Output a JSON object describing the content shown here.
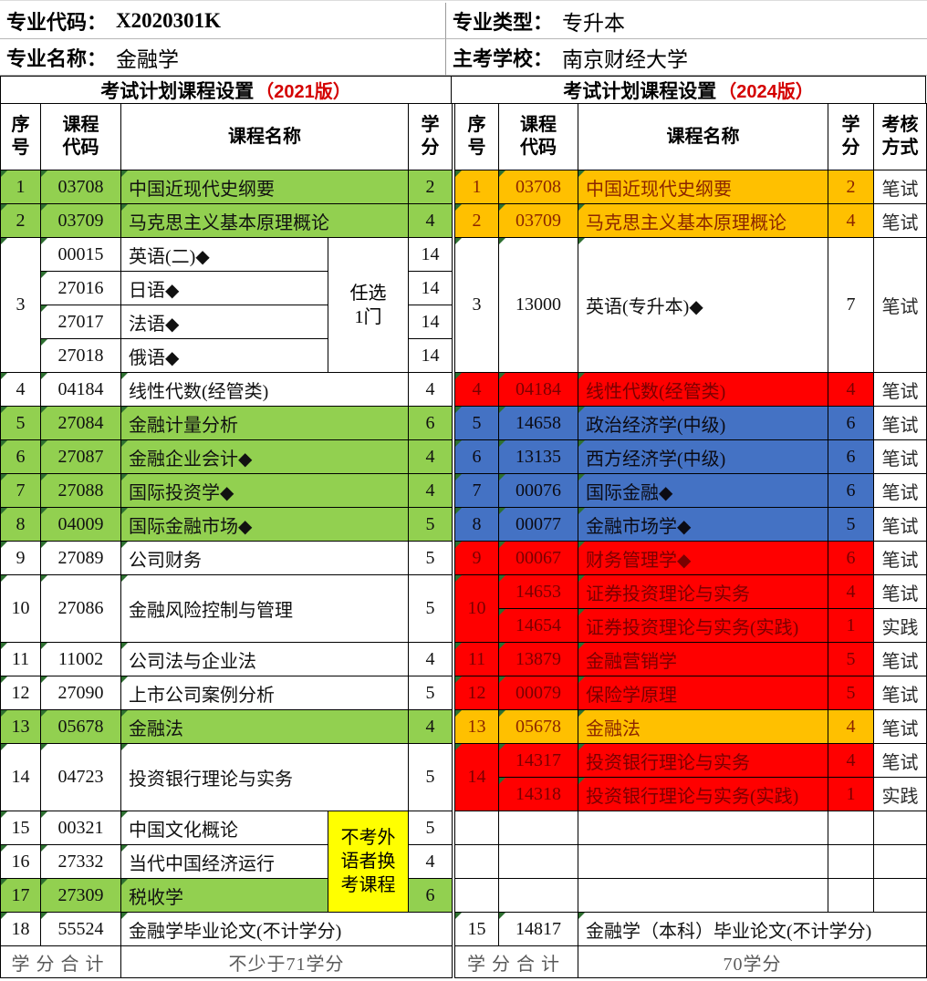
{
  "colors": {
    "green": "#92D050",
    "orange": "#FFC000",
    "red": "#FF0000",
    "blue": "#4472C4",
    "yellow": "#FFFF00",
    "version_red": "#D40000",
    "orange_row_text": "#8B2500",
    "red_row_text": "#7A0000"
  },
  "info": {
    "code_label": "专业代码：",
    "code_value": "X2020301K",
    "type_label": "专业类型：",
    "type_value": "专升本",
    "name_label": "专业名称：",
    "name_value": "金融学",
    "school_label": "主考学校：",
    "school_value": "南京财经大学"
  },
  "left_table": {
    "title": "考试计划课程设置",
    "title_version": "（2021版）",
    "headers": [
      "序\n号",
      "课程\n代码",
      "课程名称",
      "学\n分"
    ],
    "elective_note": "任选\n1门",
    "exchange_note": "不考外\n语者换\n考课程",
    "summary_label": "学分合计",
    "summary_value": "不少于71学分",
    "rows": [
      {
        "no": "1",
        "code": "03708",
        "name": "中国近现代史纲要",
        "credit": "2",
        "color": "green"
      },
      {
        "no": "2",
        "code": "03709",
        "name": "马克思主义基本原理概论",
        "credit": "4",
        "color": "green"
      },
      {
        "no": "3",
        "color": "white",
        "group": [
          {
            "code": "00015",
            "name": "英语(二)◆",
            "credit": "14"
          },
          {
            "code": "27016",
            "name": "日语◆",
            "credit": "14"
          },
          {
            "code": "27017",
            "name": "法语◆",
            "credit": "14"
          },
          {
            "code": "27018",
            "name": "俄语◆",
            "credit": "14"
          }
        ]
      },
      {
        "no": "4",
        "code": "04184",
        "name": "线性代数(经管类)",
        "credit": "4",
        "color": "white"
      },
      {
        "no": "5",
        "code": "27084",
        "name": "金融计量分析",
        "credit": "6",
        "color": "green"
      },
      {
        "no": "6",
        "code": "27087",
        "name": "金融企业会计◆",
        "credit": "4",
        "color": "green"
      },
      {
        "no": "7",
        "code": "27088",
        "name": "国际投资学◆",
        "credit": "4",
        "color": "green"
      },
      {
        "no": "8",
        "code": "04009",
        "name": "国际金融市场◆",
        "credit": "5",
        "color": "green"
      },
      {
        "no": "9",
        "code": "27089",
        "name": "公司财务",
        "credit": "5",
        "color": "white"
      },
      {
        "no": "10",
        "code": "27086",
        "name": "金融风险控制与管理",
        "credit": "5",
        "color": "white",
        "tall": true
      },
      {
        "no": "11",
        "code": "11002",
        "name": "公司法与企业法",
        "credit": "4",
        "color": "white"
      },
      {
        "no": "12",
        "code": "27090",
        "name": "上市公司案例分析",
        "credit": "5",
        "color": "white"
      },
      {
        "no": "13",
        "code": "05678",
        "name": "金融法",
        "credit": "4",
        "color": "green"
      },
      {
        "no": "14",
        "code": "04723",
        "name": "投资银行理论与实务",
        "credit": "5",
        "color": "white",
        "tall": true
      },
      {
        "no": "15",
        "code": "00321",
        "name": "中国文化概论",
        "credit": "5",
        "color": "white",
        "note_start": true
      },
      {
        "no": "16",
        "code": "27332",
        "name": "当代中国经济运行",
        "credit": "4",
        "color": "white",
        "under_note": true
      },
      {
        "no": "17",
        "code": "27309",
        "name": "税收学",
        "credit": "6",
        "color": "green",
        "under_note": true
      },
      {
        "no": "18",
        "code": "55524",
        "name": "金融学毕业论文(不计学分)",
        "credit": "",
        "color": "white",
        "full_span": true
      }
    ]
  },
  "right_table": {
    "title": "考试计划课程设置",
    "title_version": "（2024版）",
    "headers": [
      "序\n号",
      "课程\n代码",
      "课程名称",
      "学\n分",
      "考核\n方式"
    ],
    "summary_label": "学分合计",
    "summary_value": "70学分",
    "rows": [
      {
        "no": "1",
        "code": "03708",
        "name": "中国近现代史纲要",
        "credit": "2",
        "exam": "笔试",
        "color": "orange"
      },
      {
        "no": "2",
        "code": "03709",
        "name": "马克思主义基本原理概论",
        "credit": "4",
        "exam": "笔试",
        "color": "orange"
      },
      {
        "no": "3",
        "code": "13000",
        "name": "英语(专升本)◆",
        "credit": "7",
        "exam": "笔试",
        "color": "white",
        "tall4": true
      },
      {
        "no": "4",
        "code": "04184",
        "name": "线性代数(经管类)",
        "credit": "4",
        "exam": "笔试",
        "color": "red"
      },
      {
        "no": "5",
        "code": "14658",
        "name": "政治经济学(中级)",
        "credit": "6",
        "exam": "笔试",
        "color": "blue"
      },
      {
        "no": "6",
        "code": "13135",
        "name": "西方经济学(中级)",
        "credit": "6",
        "exam": "笔试",
        "color": "blue"
      },
      {
        "no": "7",
        "code": "00076",
        "name": "国际金融◆",
        "credit": "6",
        "exam": "笔试",
        "color": "blue"
      },
      {
        "no": "8",
        "code": "00077",
        "name": "金融市场学◆",
        "credit": "5",
        "exam": "笔试",
        "color": "blue"
      },
      {
        "no": "9",
        "code": "00067",
        "name": "财务管理学◆",
        "credit": "6",
        "exam": "笔试",
        "color": "red"
      },
      {
        "no": "10",
        "color": "red",
        "group": [
          {
            "code": "14653",
            "name": "证券投资理论与实务",
            "credit": "4",
            "exam": "笔试"
          },
          {
            "code": "14654",
            "name": "证券投资理论与实务(实践)",
            "credit": "1",
            "exam": "实践"
          }
        ]
      },
      {
        "no": "11",
        "code": "13879",
        "name": "金融营销学",
        "credit": "5",
        "exam": "笔试",
        "color": "red"
      },
      {
        "no": "12",
        "code": "00079",
        "name": "保险学原理",
        "credit": "5",
        "exam": "笔试",
        "color": "red"
      },
      {
        "no": "13",
        "code": "05678",
        "name": "金融法",
        "credit": "4",
        "exam": "笔试",
        "color": "orange"
      },
      {
        "no": "14",
        "color": "red",
        "group": [
          {
            "code": "14317",
            "name": "投资银行理论与实务",
            "credit": "4",
            "exam": "笔试"
          },
          {
            "code": "14318",
            "name": "投资银行理论与实务(实践)",
            "credit": "1",
            "exam": "实践"
          }
        ]
      },
      {
        "empty": true
      },
      {
        "empty": true
      },
      {
        "empty": true
      },
      {
        "no": "15",
        "code": "14817",
        "name": "金融学（本科）毕业论文(不计学分)",
        "credit": "",
        "exam": "",
        "color": "white",
        "full_span": true
      }
    ]
  }
}
